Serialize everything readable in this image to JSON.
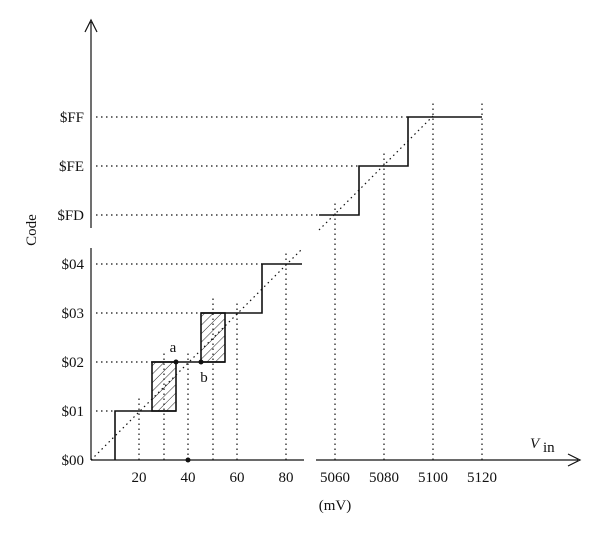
{
  "y_axis": {
    "title": "Code",
    "ticks": [
      "$00",
      "$01",
      "$02",
      "$03",
      "$04",
      "$FD",
      "$FE",
      "$FF"
    ]
  },
  "x_axis": {
    "title": "V",
    "subscript": "in",
    "unit": "(mV)",
    "ticks": [
      "20",
      "40",
      "60",
      "80",
      "5060",
      "5080",
      "5100",
      "5120"
    ]
  },
  "points": [
    "a",
    "b"
  ]
}
